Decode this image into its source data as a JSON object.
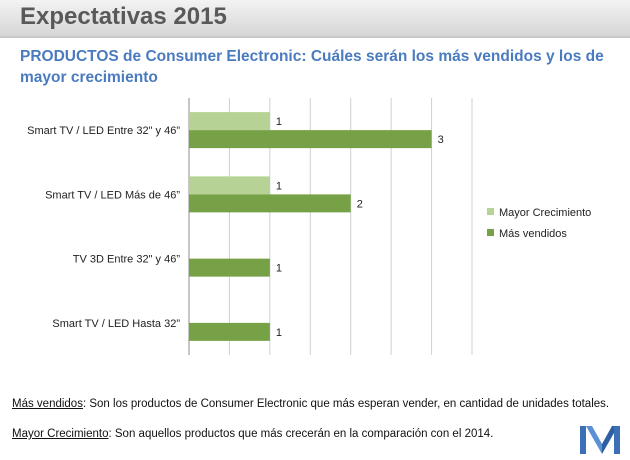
{
  "page": {
    "title": "Expectativas 2015",
    "subtitle": "PRODUCTOS de Consumer Electronic: Cuáles serán los más vendidos y los de mayor crecimiento"
  },
  "chart_data": {
    "type": "bar",
    "orientation": "horizontal",
    "categories": [
      "Smart TV / LED Entre 32\" y 46”",
      "Smart TV / LED Más de 46”",
      "TV 3D Entre 32\" y 46”",
      "Smart TV / LED Hasta 32”"
    ],
    "series": [
      {
        "name": "Mayor Crecimiento",
        "color": "#b6d395",
        "values": [
          1,
          1,
          null,
          null
        ]
      },
      {
        "name": "Más vendidos",
        "color": "#77a147",
        "values": [
          3,
          2,
          1,
          1
        ]
      }
    ],
    "xlim": [
      0,
      3.5
    ],
    "grid": true,
    "legend": "right"
  },
  "notes": [
    {
      "term": "Más vendidos",
      "text": ":  Son los productos de Consumer Electronic que más esperan vender, en cantidad de unidades totales."
    },
    {
      "term": "Mayor Crecimiento",
      "text": ": Son aquellos productos que más crecerán en la comparación con el 2014."
    }
  ],
  "logo_icon": "m-logo-icon"
}
